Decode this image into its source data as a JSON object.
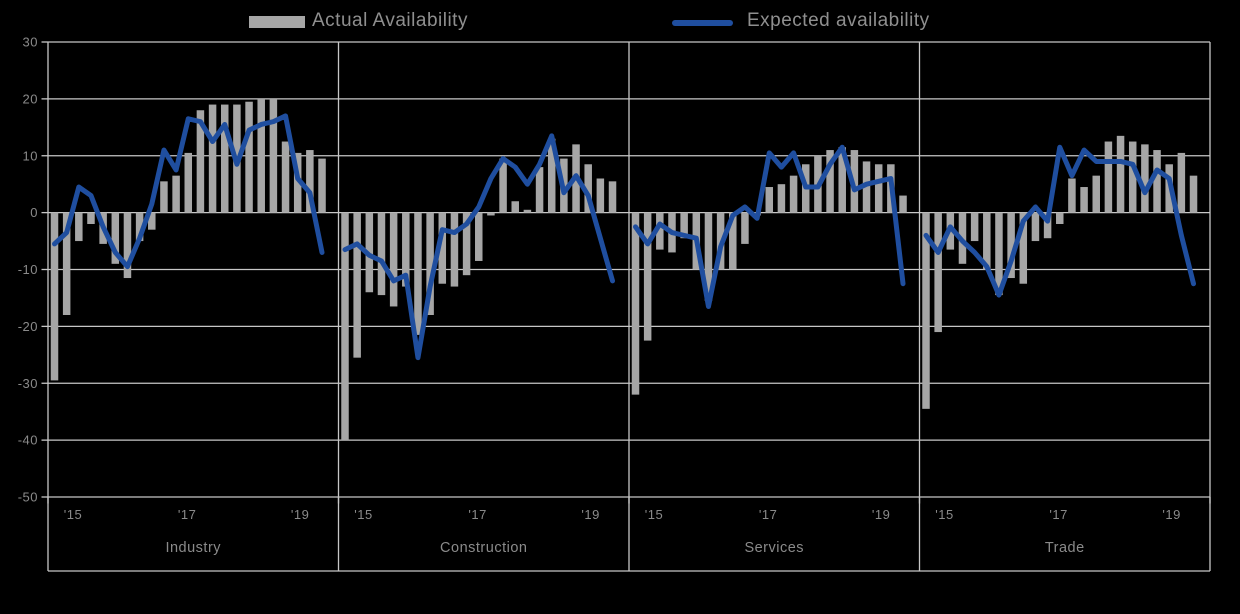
{
  "legend": {
    "actual_label": "Actual Availability",
    "expected_label": "Expected availability"
  },
  "colors": {
    "bar": "#a6a6a6",
    "line": "#1f4e9f",
    "grid": "#c7c7c7",
    "text": "#8a8a8a",
    "background": "#000000"
  },
  "chart_data": {
    "type": "bar",
    "subtype": "bar-and-line-small-multiples",
    "title": "",
    "ylabel": "",
    "xlabel": "",
    "ylim": [
      -50,
      30
    ],
    "grid": true,
    "legend_position": "top",
    "y_tick_labels": [
      "30",
      "20",
      "10",
      "0",
      "-10",
      "-20",
      "-30",
      "-40",
      "-50"
    ],
    "y_tick_values": [
      30,
      20,
      10,
      0,
      -10,
      -20,
      -30,
      -40,
      -50
    ],
    "x_tick_labels": [
      "'15",
      "'17",
      "'19"
    ],
    "series_names": [
      "Actual Availability",
      "Expected availability"
    ],
    "panels": [
      {
        "label": "Industry",
        "actual": [
          -29.5,
          -18,
          -5,
          -2,
          -5.5,
          -9,
          -11.5,
          -5,
          -3,
          5.5,
          6.5,
          10.5,
          18,
          19,
          19,
          19,
          19.5,
          20,
          20,
          12.5,
          10.5,
          11,
          9.5
        ],
        "expected": [
          -5.5,
          -3.5,
          4.5,
          3,
          -2.5,
          -7,
          -9.5,
          -4.5,
          1.5,
          11,
          7.5,
          16.5,
          16,
          12.5,
          15.5,
          8.5,
          14.5,
          15.5,
          16,
          17,
          6,
          3.5,
          -7
        ]
      },
      {
        "label": "Construction",
        "actual": [
          -40,
          -25.5,
          -14,
          -14.5,
          -16.5,
          -13,
          -21.5,
          -18,
          -12.5,
          -13,
          -11,
          -8.5,
          -0.5,
          9.5,
          2,
          0.5,
          8,
          13,
          9.5,
          12,
          8.5,
          6,
          5.5
        ],
        "expected": [
          -6.5,
          -5.5,
          -7.5,
          -8.5,
          -12,
          -11,
          -25.5,
          -13,
          -3,
          -3.5,
          -2,
          1,
          6,
          9.5,
          8,
          5,
          8.5,
          13.5,
          3.5,
          6.5,
          3,
          -4.5,
          -12
        ]
      },
      {
        "label": "Services",
        "actual": [
          -32,
          -22.5,
          -6.5,
          -7,
          -4.5,
          -10,
          -15.5,
          -10,
          -10,
          -5.5,
          -0.5,
          4.5,
          5,
          6.5,
          8.5,
          10,
          11,
          11.5,
          11,
          9,
          8.5,
          8.5,
          3
        ],
        "expected": [
          -2.5,
          -5.5,
          -2,
          -3.5,
          -4,
          -4.5,
          -16.5,
          -6,
          -0.5,
          1,
          -1,
          10.5,
          8,
          10.5,
          4.5,
          4.5,
          8.5,
          11.5,
          4,
          5,
          5.5,
          6,
          -12.5
        ]
      },
      {
        "label": "Trade",
        "actual": [
          -34.5,
          -21,
          -6.5,
          -9,
          -5,
          -10,
          -14.5,
          -11.5,
          -12.5,
          -5,
          -4.5,
          -2,
          6,
          4.5,
          6.5,
          12.5,
          13.5,
          12.5,
          12,
          11,
          8.5,
          10.5,
          6.5
        ],
        "expected": [
          -4,
          -7,
          -2.5,
          -5,
          -7,
          -9.5,
          -14.5,
          -8.5,
          -1.5,
          1,
          -1.5,
          11.5,
          6.5,
          11,
          9,
          9,
          9,
          8.5,
          3.5,
          7.5,
          6,
          -4,
          -12.5
        ]
      }
    ]
  }
}
